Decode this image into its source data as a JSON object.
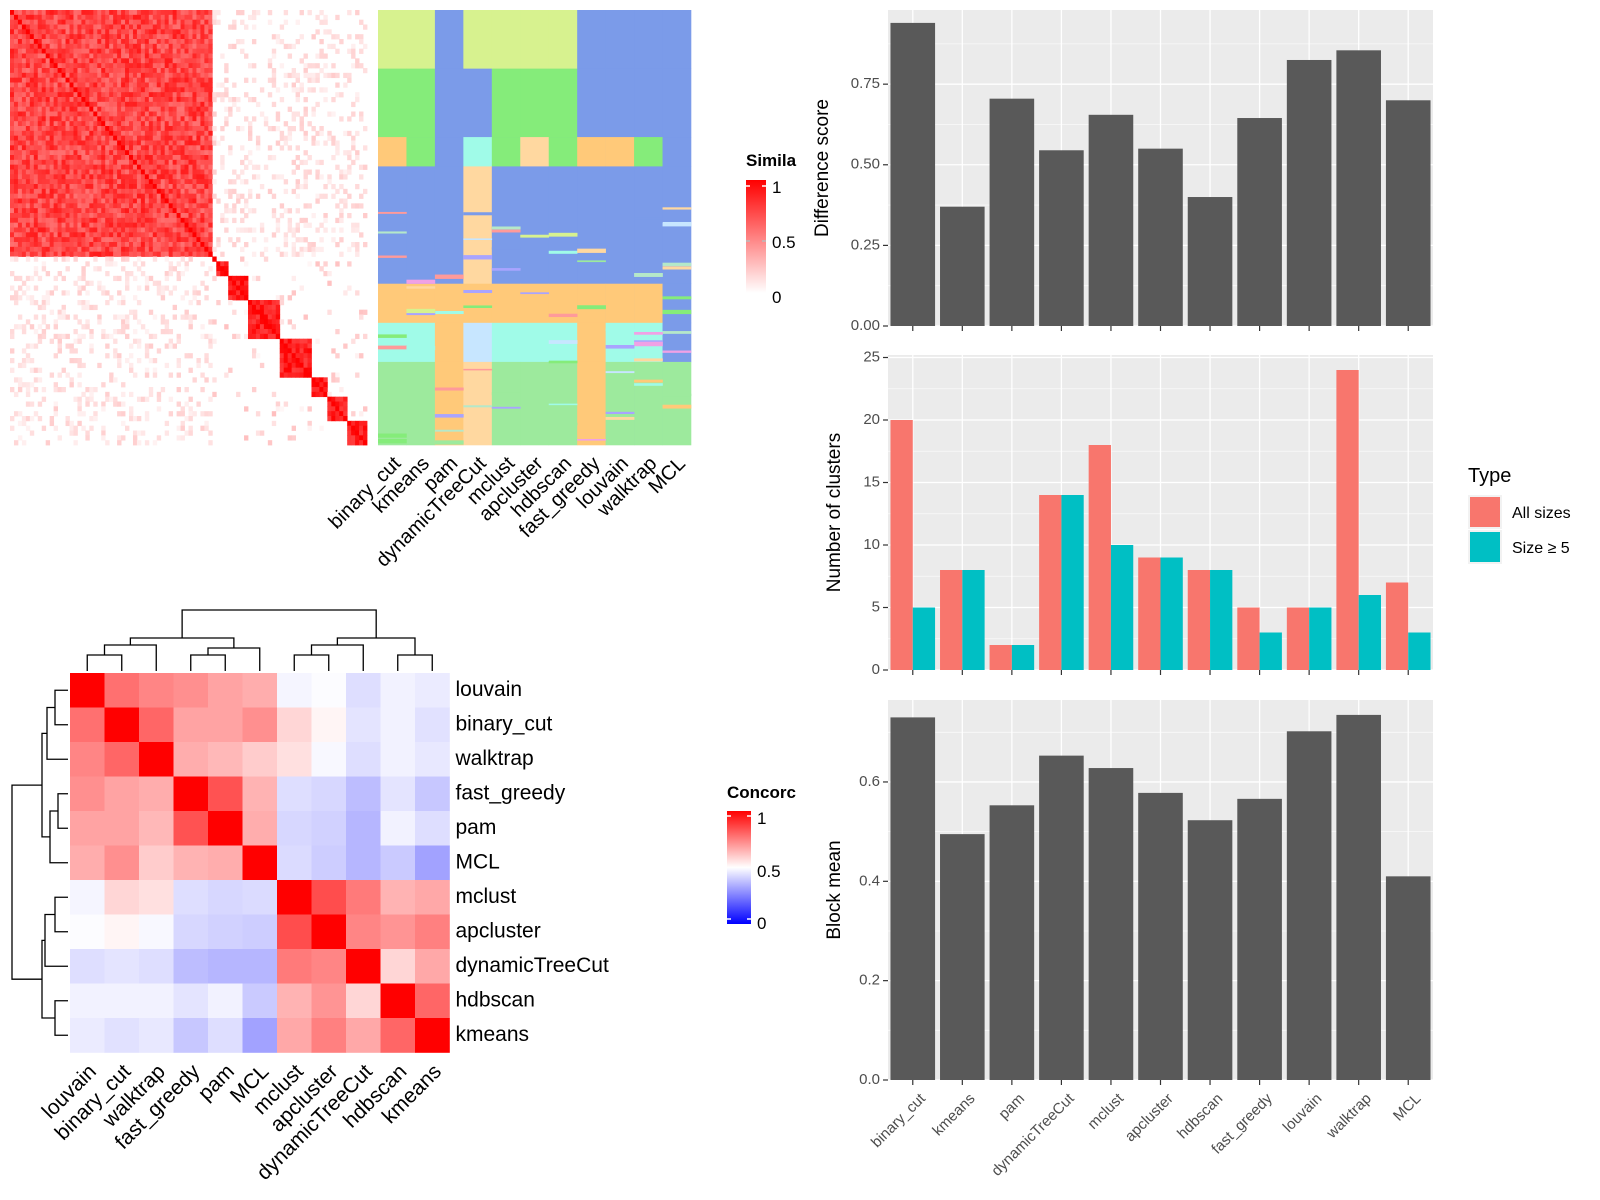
{
  "colors": {
    "panel_bg": "#ebebeb",
    "grid": "#ffffff",
    "bar": "#595959",
    "all_sizes": "#f8766d",
    "size5": "#00bfc4",
    "sim_high": "#ff0000",
    "conc_high": "#ff0000",
    "conc_mid": "#ffffff",
    "conc_low": "#0000ff",
    "cluster_palette": [
      "#7b9be9",
      "#d7f28f",
      "#85ec7a",
      "#ffc979",
      "#a0fbe8",
      "#ffd8a0",
      "#c7e6ff",
      "#f0a1e5",
      "#a9a4ff",
      "#ff9a9a",
      "#9dea9d",
      "#b5e8c9"
    ]
  },
  "similarity_legend": {
    "title": "Simila",
    "ticks": [
      "1",
      "0.5",
      "0"
    ]
  },
  "concordance_legend": {
    "title": "Concorc",
    "ticks": [
      "1",
      "0.5",
      "0"
    ]
  },
  "partition_heatmap": {
    "column_labels": [
      "binary_cut",
      "kmeans",
      "pam",
      "dynamicTreeCut",
      "mclust",
      "apcluster",
      "hdbscan",
      "fast_greedy",
      "louvain",
      "walktrap",
      "MCL"
    ]
  },
  "concordance_heatmap": {
    "row_labels": [
      "louvain",
      "binary_cut",
      "walktrap",
      "fast_greedy",
      "pam",
      "MCL",
      "mclust",
      "apcluster",
      "dynamicTreeCut",
      "hdbscan",
      "kmeans"
    ],
    "column_labels": [
      "louvain",
      "binary_cut",
      "walktrap",
      "fast_greedy",
      "pam",
      "MCL",
      "mclust",
      "apcluster",
      "dynamicTreeCut",
      "hdbscan",
      "kmeans"
    ]
  },
  "legend_type": {
    "title": "Type",
    "entries": [
      "All sizes",
      "Size ≥ 5"
    ]
  },
  "chart_data": [
    {
      "type": "bar",
      "categories": [
        "binary_cut",
        "kmeans",
        "pam",
        "dynamicTreeCut",
        "mclust",
        "apcluster",
        "hdbscan",
        "fast_greedy",
        "louvain",
        "walktrap",
        "MCL"
      ],
      "values": [
        0.94,
        0.37,
        0.705,
        0.545,
        0.655,
        0.55,
        0.4,
        0.645,
        0.825,
        0.855,
        0.7
      ],
      "ylabel": "Difference score",
      "ylim": [
        0,
        0.98
      ],
      "yticks": [
        "0.00",
        "0.25",
        "0.50",
        "0.75"
      ],
      "show_x_labels": false
    },
    {
      "type": "bar",
      "categories": [
        "binary_cut",
        "kmeans",
        "pam",
        "dynamicTreeCut",
        "mclust",
        "apcluster",
        "hdbscan",
        "fast_greedy",
        "louvain",
        "walktrap",
        "MCL"
      ],
      "series": [
        {
          "name": "All sizes",
          "values": [
            20,
            8,
            2,
            14,
            18,
            9,
            8,
            5,
            5,
            24,
            7
          ]
        },
        {
          "name": "Size ≥ 5",
          "values": [
            5,
            8,
            2,
            14,
            10,
            9,
            8,
            3,
            5,
            6,
            3
          ]
        }
      ],
      "ylabel": "Number of clusters",
      "ylim": [
        0,
        25.2
      ],
      "yticks": [
        "0",
        "5",
        "10",
        "15",
        "20",
        "25"
      ],
      "legend": "right",
      "show_x_labels": false
    },
    {
      "type": "bar",
      "categories": [
        "binary_cut",
        "kmeans",
        "pam",
        "dynamicTreeCut",
        "mclust",
        "apcluster",
        "hdbscan",
        "fast_greedy",
        "louvain",
        "walktrap",
        "MCL"
      ],
      "values": [
        0.73,
        0.495,
        0.553,
        0.653,
        0.628,
        0.578,
        0.523,
        0.566,
        0.702,
        0.735,
        0.41
      ],
      "ylabel": "Block mean",
      "ylim": [
        0,
        0.765
      ],
      "yticks": [
        "0.0",
        "0.2",
        "0.4",
        "0.6"
      ],
      "show_x_labels": true
    },
    {
      "type": "heatmap",
      "name": "concordance",
      "rows": [
        "louvain",
        "binary_cut",
        "walktrap",
        "fast_greedy",
        "pam",
        "MCL",
        "mclust",
        "apcluster",
        "dynamicTreeCut",
        "hdbscan",
        "kmeans"
      ],
      "cols": [
        "louvain",
        "binary_cut",
        "walktrap",
        "fast_greedy",
        "pam",
        "MCL",
        "mclust",
        "apcluster",
        "dynamicTreeCut",
        "hdbscan",
        "kmeans"
      ],
      "values": [
        [
          1.0,
          0.78,
          0.74,
          0.72,
          0.68,
          0.66,
          0.47,
          0.49,
          0.4,
          0.46,
          0.44
        ],
        [
          0.78,
          1.0,
          0.8,
          0.68,
          0.68,
          0.72,
          0.58,
          0.52,
          0.42,
          0.46,
          0.41
        ],
        [
          0.74,
          0.8,
          1.0,
          0.66,
          0.64,
          0.6,
          0.56,
          0.48,
          0.4,
          0.46,
          0.43
        ],
        [
          0.72,
          0.68,
          0.66,
          1.0,
          0.84,
          0.65,
          0.4,
          0.38,
          0.3,
          0.42,
          0.33
        ],
        [
          0.68,
          0.68,
          0.64,
          0.84,
          1.0,
          0.66,
          0.38,
          0.36,
          0.28,
          0.46,
          0.4
        ],
        [
          0.66,
          0.72,
          0.6,
          0.65,
          0.66,
          1.0,
          0.39,
          0.35,
          0.28,
          0.34,
          0.22
        ],
        [
          0.47,
          0.58,
          0.56,
          0.4,
          0.38,
          0.39,
          1.0,
          0.85,
          0.76,
          0.65,
          0.67
        ],
        [
          0.49,
          0.52,
          0.48,
          0.38,
          0.36,
          0.35,
          0.85,
          1.0,
          0.74,
          0.71,
          0.75
        ],
        [
          0.4,
          0.42,
          0.4,
          0.3,
          0.28,
          0.28,
          0.76,
          0.74,
          1.0,
          0.58,
          0.67
        ],
        [
          0.46,
          0.46,
          0.46,
          0.42,
          0.46,
          0.34,
          0.65,
          0.71,
          0.58,
          1.0,
          0.8
        ],
        [
          0.44,
          0.41,
          0.43,
          0.33,
          0.4,
          0.22,
          0.67,
          0.75,
          0.67,
          0.8,
          1.0
        ]
      ]
    }
  ]
}
